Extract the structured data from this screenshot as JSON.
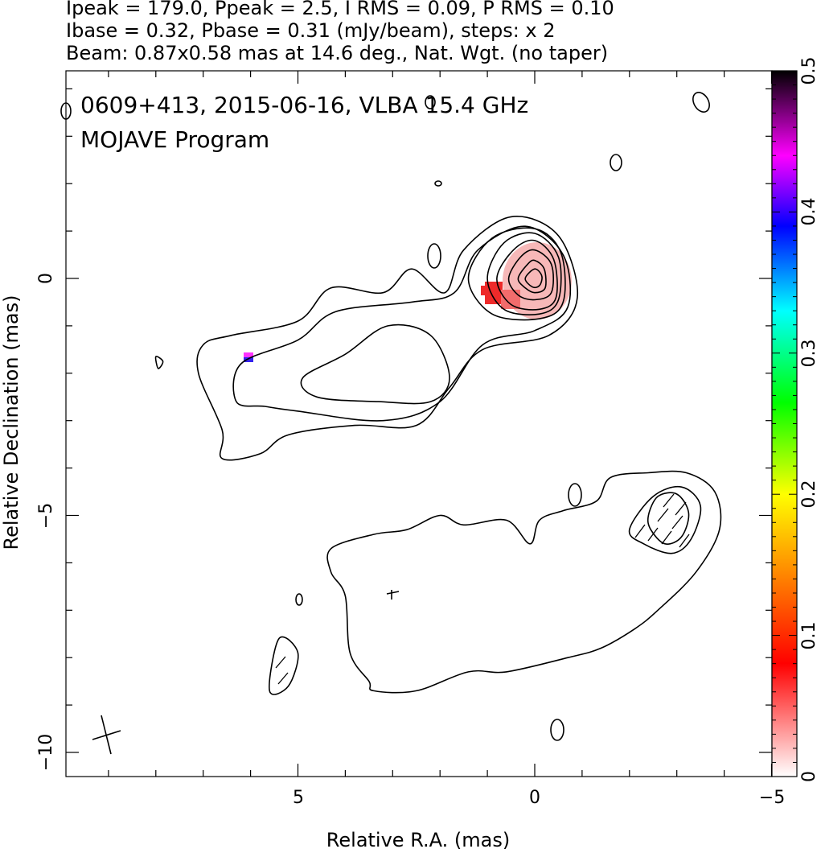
{
  "chart_data": {
    "type": "contour",
    "header": {
      "line1": "Ipeak = 179.0, Ppeak = 2.5, I RMS = 0.09, P RMS = 0.10",
      "line2": "Ibase = 0.32, Pbase = 0.31 (mJy/beam), steps: x 2",
      "line3": "Beam: 0.87x0.58 mas at 14.6 deg., Nat. Wgt. (no taper)"
    },
    "title": "0609+413, 2015-06-16, VLBA 15.4 GHz",
    "subtitle": "MOJAVE Program",
    "xlabel": "Relative R.A. (mas)",
    "ylabel": "Relative Declination (mas)",
    "xlim": [
      10,
      -5
    ],
    "ylim": [
      -10.5,
      4.4
    ],
    "x_ticks": [
      5,
      0,
      -5
    ],
    "x_tick_labels": [
      "5",
      "0",
      "−5"
    ],
    "y_ticks": [
      0,
      -5,
      -10
    ],
    "y_tick_labels": [
      "0",
      "−5",
      "−10"
    ],
    "colorbar": {
      "range": [
        0,
        0.5
      ],
      "ticks": [
        0,
        0.1,
        0.2,
        0.3,
        0.4,
        0.5
      ],
      "tick_labels": [
        "0",
        "0.1",
        "0.2",
        "0.3",
        "0.4",
        "0.5"
      ],
      "colors": [
        "#ffffff",
        "#ff0000",
        "#ffff00",
        "#00ff00",
        "#00ffff",
        "#0000ff",
        "#ff00ff",
        "#000000"
      ]
    },
    "core_position": [
      0,
      0
    ],
    "beam": {
      "major_mas": 0.87,
      "minor_mas": 0.58,
      "pa_deg": 14.6,
      "center": [
        9.5,
        -9.7
      ]
    },
    "contours": [
      {
        "level": 1,
        "points": [
          [
            7.0,
            -1.4
          ],
          [
            6.4,
            -1.2
          ],
          [
            5.0,
            -0.9
          ],
          [
            4.3,
            -0.2
          ],
          [
            3.2,
            -0.3
          ],
          [
            2.6,
            0.2
          ],
          [
            1.9,
            -0.3
          ],
          [
            1.5,
            0.6
          ],
          [
            0.5,
            1.3
          ],
          [
            -0.5,
            0.9
          ],
          [
            -0.9,
            -0.4
          ],
          [
            -0.3,
            -1.2
          ],
          [
            1.1,
            -1.5
          ],
          [
            1.8,
            -2.3
          ],
          [
            2.5,
            -3.1
          ],
          [
            3.8,
            -3.1
          ],
          [
            5.2,
            -3.3
          ],
          [
            5.8,
            -3.7
          ],
          [
            6.6,
            -3.8
          ],
          [
            6.6,
            -3.2
          ],
          [
            7.1,
            -2.0
          ]
        ]
      },
      {
        "level": 2,
        "points": [
          [
            6.2,
            -1.8
          ],
          [
            5.0,
            -1.3
          ],
          [
            4.2,
            -0.7
          ],
          [
            2.6,
            -0.5
          ],
          [
            1.7,
            -0.3
          ],
          [
            1.2,
            0.6
          ],
          [
            0.2,
            1.1
          ],
          [
            -0.6,
            0.5
          ],
          [
            -0.7,
            -0.6
          ],
          [
            0.0,
            -1.1
          ],
          [
            1.1,
            -1.4
          ],
          [
            2.0,
            -2.6
          ],
          [
            3.2,
            -3.0
          ],
          [
            5.0,
            -2.8
          ],
          [
            5.7,
            -2.7
          ],
          [
            6.3,
            -2.6
          ]
        ]
      },
      {
        "level": 4,
        "points": [
          [
            4.9,
            -2.1
          ],
          [
            4.0,
            -1.6
          ],
          [
            3.1,
            -1.0
          ],
          [
            2.2,
            -1.2
          ],
          [
            1.8,
            -2.1
          ],
          [
            2.2,
            -2.6
          ],
          [
            3.3,
            -2.6
          ],
          [
            4.6,
            -2.5
          ]
        ]
      },
      {
        "level": 8,
        "points": [
          [
            1.4,
            0.0
          ],
          [
            0.9,
            0.85
          ],
          [
            0.0,
            1.05
          ],
          [
            -0.55,
            0.55
          ],
          [
            -0.6,
            -0.5
          ],
          [
            -0.1,
            -0.85
          ],
          [
            0.9,
            -0.75
          ]
        ]
      },
      {
        "level": 16,
        "points": [
          [
            1.0,
            0.0
          ],
          [
            0.65,
            0.75
          ],
          [
            0.0,
            0.95
          ],
          [
            -0.5,
            0.45
          ],
          [
            -0.5,
            -0.45
          ],
          [
            -0.1,
            -0.75
          ],
          [
            0.65,
            -0.65
          ]
        ]
      },
      {
        "level": 32,
        "points": [
          [
            0.8,
            0.0
          ],
          [
            0.45,
            0.6
          ],
          [
            0.0,
            0.8
          ],
          [
            -0.4,
            0.4
          ],
          [
            -0.45,
            -0.4
          ],
          [
            -0.1,
            -0.65
          ],
          [
            0.5,
            -0.55
          ]
        ]
      },
      {
        "level": 64,
        "points": [
          [
            0.55,
            0.0
          ],
          [
            0.3,
            0.45
          ],
          [
            0.0,
            0.6
          ],
          [
            -0.35,
            0.3
          ],
          [
            -0.35,
            -0.3
          ],
          [
            0.0,
            -0.45
          ],
          [
            0.35,
            -0.35
          ]
        ]
      },
      {
        "level": 128,
        "points": [
          [
            0.35,
            0.0
          ],
          [
            0.15,
            0.3
          ],
          [
            0.0,
            0.38
          ],
          [
            -0.2,
            0.2
          ],
          [
            -0.22,
            -0.2
          ],
          [
            0.0,
            -0.3
          ],
          [
            0.2,
            -0.2
          ]
        ]
      },
      {
        "level": 256,
        "points": [
          [
            0.2,
            0.0
          ],
          [
            0.0,
            0.2
          ],
          [
            -0.15,
            0.05
          ],
          [
            -0.1,
            -0.15
          ],
          [
            0.05,
            -0.18
          ]
        ]
      },
      {
        "level": 1,
        "points": [
          [
            4.3,
            -6.2
          ],
          [
            4.0,
            -6.7
          ],
          [
            3.9,
            -7.9
          ],
          [
            3.5,
            -8.5
          ],
          [
            3.4,
            -8.7
          ],
          [
            2.5,
            -8.7
          ],
          [
            1.4,
            -8.3
          ],
          [
            0.6,
            -8.3
          ],
          [
            -0.7,
            -8.0
          ],
          [
            -1.4,
            -7.8
          ],
          [
            -2.1,
            -7.4
          ],
          [
            -2.6,
            -7.0
          ],
          [
            -3.4,
            -6.2
          ],
          [
            -3.9,
            -5.3
          ],
          [
            -3.8,
            -4.5
          ],
          [
            -3.2,
            -4.1
          ],
          [
            -2.4,
            -4.1
          ],
          [
            -1.6,
            -4.2
          ],
          [
            -1.3,
            -4.7
          ],
          [
            -0.6,
            -4.9
          ],
          [
            -0.1,
            -5.1
          ],
          [
            0.1,
            -5.6
          ],
          [
            0.6,
            -5.1
          ],
          [
            1.5,
            -5.2
          ],
          [
            2.0,
            -5.0
          ],
          [
            2.7,
            -5.3
          ],
          [
            3.4,
            -5.4
          ],
          [
            4.3,
            -5.7
          ]
        ]
      },
      {
        "level": 2,
        "points": [
          [
            -2.0,
            -5.3
          ],
          [
            -2.5,
            -4.6
          ],
          [
            -3.1,
            -4.4
          ],
          [
            -3.5,
            -4.8
          ],
          [
            -3.3,
            -5.5
          ],
          [
            -2.9,
            -5.8
          ],
          [
            -2.3,
            -5.6
          ]
        ]
      },
      {
        "level": 4,
        "points": [
          [
            -2.4,
            -5.0
          ],
          [
            -2.6,
            -4.6
          ],
          [
            -3.0,
            -4.55
          ],
          [
            -3.25,
            -4.95
          ],
          [
            -3.1,
            -5.45
          ],
          [
            -2.75,
            -5.6
          ],
          [
            -2.45,
            -5.3
          ]
        ]
      },
      {
        "level": 1,
        "points": [
          [
            8.0,
            -1.65
          ],
          [
            7.85,
            -1.75
          ],
          [
            7.95,
            -1.9
          ]
        ]
      },
      {
        "level": 1,
        "points": [
          [
            5.4,
            -7.6
          ],
          [
            5.0,
            -7.9
          ],
          [
            5.2,
            -8.6
          ],
          [
            5.6,
            -8.7
          ]
        ]
      }
    ],
    "fractional_polarization_pixels": [
      {
        "x": 6.0,
        "y": -1.6,
        "value": 0.42
      },
      {
        "x": 1.0,
        "y": -0.3,
        "value": 0.08
      }
    ]
  }
}
